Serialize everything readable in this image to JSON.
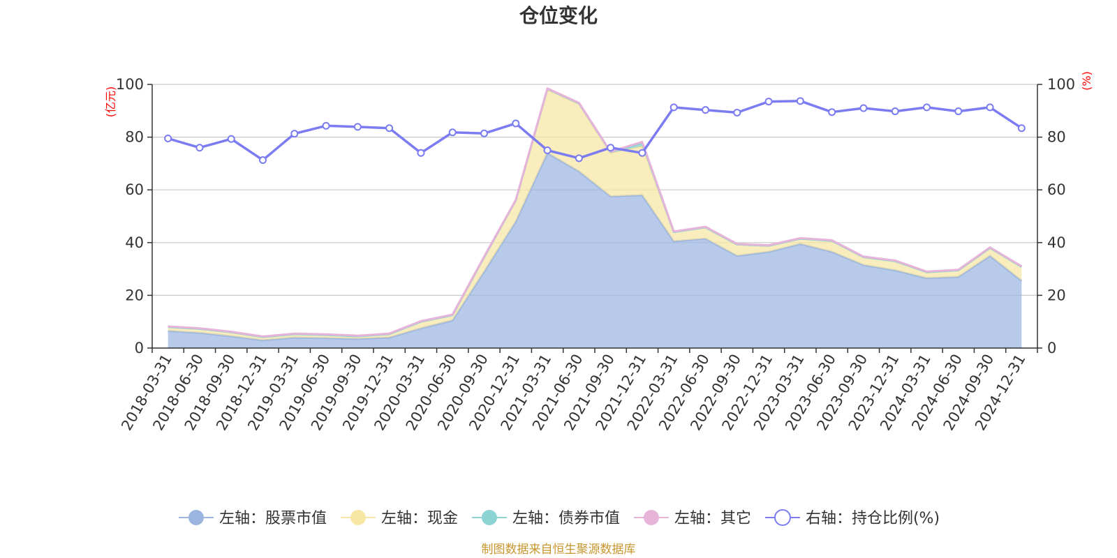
{
  "chart_data": {
    "type": "area",
    "title": "仓位变化",
    "left_axis_unit": "(亿元)",
    "right_axis_unit": "(%)",
    "y_left": {
      "min": 0,
      "max": 100,
      "ticks": [
        0,
        20,
        40,
        60,
        80,
        100
      ]
    },
    "y_right": {
      "min": 0,
      "max": 100,
      "ticks": [
        0,
        20,
        40,
        60,
        80,
        100
      ]
    },
    "categories": [
      "2018-03-31",
      "2018-06-30",
      "2018-09-30",
      "2018-12-31",
      "2019-03-31",
      "2019-06-30",
      "2019-09-30",
      "2019-12-31",
      "2020-03-31",
      "2020-06-30",
      "2020-09-30",
      "2020-12-31",
      "2021-03-31",
      "2021-06-30",
      "2021-09-30",
      "2021-12-31",
      "2022-03-31",
      "2022-06-30",
      "2022-09-30",
      "2022-12-31",
      "2023-03-31",
      "2023-06-30",
      "2023-09-30",
      "2023-12-31",
      "2024-03-31",
      "2024-06-30",
      "2024-09-30",
      "2024-12-31"
    ],
    "series": [
      {
        "name": "左轴：股票市值",
        "axis": "left",
        "kind": "stacked-area",
        "color": "#9bb5e0",
        "values": [
          6.5,
          5.8,
          4.5,
          3.0,
          4.0,
          3.8,
          3.5,
          4.0,
          7.5,
          10.5,
          29.0,
          48.0,
          74.0,
          67.0,
          57.5,
          58.0,
          40.5,
          41.5,
          35.0,
          36.5,
          39.5,
          36.5,
          31.5,
          29.5,
          26.5,
          27.0,
          35.0,
          25.5
        ]
      },
      {
        "name": "左轴：现金",
        "axis": "left",
        "kind": "stacked-area",
        "color": "#f7e6a4",
        "values": [
          1.5,
          1.5,
          1.5,
          1.2,
          1.3,
          1.2,
          1.0,
          1.3,
          2.5,
          2.0,
          5.5,
          8.0,
          24.0,
          25.5,
          16.5,
          18.5,
          3.5,
          4.3,
          4.3,
          2.3,
          2.0,
          4.2,
          3.0,
          3.5,
          2.3,
          2.5,
          3.0,
          5.3
        ]
      },
      {
        "name": "左轴：债券市值",
        "axis": "left",
        "kind": "stacked-area",
        "color": "#8dd3d3",
        "values": [
          0,
          0,
          0,
          0,
          0,
          0,
          0,
          0,
          0,
          0,
          0,
          0,
          0.3,
          0.3,
          0.3,
          1.2,
          0,
          0,
          0,
          0,
          0,
          0,
          0,
          0,
          0,
          0,
          0,
          0
        ]
      },
      {
        "name": "左轴：其它",
        "axis": "left",
        "kind": "stacked-area",
        "color": "#e6b3d9",
        "values": [
          0.2,
          0.2,
          0.2,
          0.2,
          0.2,
          0.2,
          0.2,
          0.2,
          0.2,
          0.2,
          0.2,
          0.2,
          0.2,
          0.2,
          0.2,
          0.5,
          0.2,
          0.2,
          0.2,
          0.2,
          0.2,
          0.2,
          0.2,
          0.2,
          0.2,
          0.2,
          0.2,
          0.2
        ]
      },
      {
        "name": "右轴：持仓比例(%)",
        "axis": "right",
        "kind": "line",
        "color": "#7b7bf2",
        "values": [
          79.5,
          76,
          79.3,
          71.3,
          81.3,
          84.3,
          83.9,
          83.4,
          74,
          81.8,
          81.4,
          85.2,
          75,
          72,
          76,
          74,
          91.3,
          90.3,
          89.3,
          93.5,
          93.7,
          89.5,
          91,
          89.8,
          91.3,
          89.8,
          91.3,
          83.4
        ]
      }
    ],
    "legend": [
      "左轴：股票市值",
      "左轴：现金",
      "左轴：债券市值",
      "左轴：其它",
      "右轴：持仓比例(%)"
    ],
    "legend_position": "bottom",
    "grid": true,
    "source": "制图数据来自恒生聚源数据库"
  }
}
